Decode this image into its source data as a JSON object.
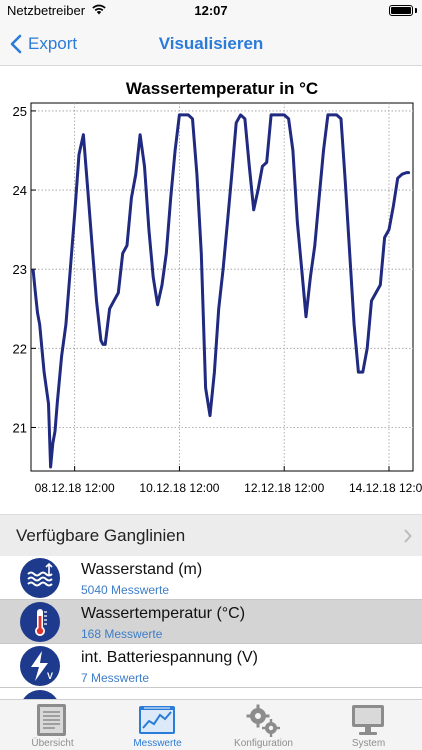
{
  "status_bar": {
    "carrier": "Netzbetreiber",
    "time": "12:07",
    "battery_level": 1.0
  },
  "nav": {
    "back_label": "Export",
    "title": "Visualisieren"
  },
  "chart_data": {
    "type": "line",
    "title": "Wassertemperatur in °C",
    "xlabel": "",
    "ylabel": "",
    "ylim": [
      20.45,
      25.1
    ],
    "xlim": [
      "2018-12-07T16:00",
      "2018-12-14T23:00"
    ],
    "grid": true,
    "yticks": [
      "21",
      "22",
      "23",
      "24",
      "25"
    ],
    "xticks": [
      "08.12.18 12:00",
      "10.12.18 12:00",
      "12.12.18 12:00",
      "14.12.18 12:00"
    ],
    "line_color": "#1f2a80",
    "series": [
      {
        "x": [
          "2018-12-07T17:00",
          "2018-12-07T18:00",
          "2018-12-07T19:00",
          "2018-12-07T20:00",
          "2018-12-07T22:00",
          "2018-12-08T00:00",
          "2018-12-08T01:00",
          "2018-12-08T02:00",
          "2018-12-08T03:00",
          "2018-12-08T04:00",
          "2018-12-08T05:00",
          "2018-12-08T06:00",
          "2018-12-08T08:00",
          "2018-12-08T10:00",
          "2018-12-08T12:00",
          "2018-12-08T14:00",
          "2018-12-08T16:00",
          "2018-12-08T18:00",
          "2018-12-08T20:00",
          "2018-12-08T22:00",
          "2018-12-09T00:00",
          "2018-12-09T01:00",
          "2018-12-09T02:00",
          "2018-12-09T04:00",
          "2018-12-09T06:00",
          "2018-12-09T08:00",
          "2018-12-09T10:00",
          "2018-12-09T12:00",
          "2018-12-09T14:00",
          "2018-12-09T16:00",
          "2018-12-09T18:00",
          "2018-12-09T20:00",
          "2018-12-09T22:00",
          "2018-12-10T00:00",
          "2018-12-10T02:00",
          "2018-12-10T04:00",
          "2018-12-10T06:00",
          "2018-12-10T08:00",
          "2018-12-10T10:00",
          "2018-12-10T12:00",
          "2018-12-10T14:00",
          "2018-12-10T16:00",
          "2018-12-10T18:00",
          "2018-12-10T20:00",
          "2018-12-10T22:00",
          "2018-12-11T00:00",
          "2018-12-11T02:00",
          "2018-12-11T04:00",
          "2018-12-11T06:00",
          "2018-12-11T08:00",
          "2018-12-11T10:00",
          "2018-12-11T12:00",
          "2018-12-11T14:00",
          "2018-12-11T16:00",
          "2018-12-11T18:00",
          "2018-12-11T20:00",
          "2018-12-11T22:00",
          "2018-12-12T00:00",
          "2018-12-12T02:00",
          "2018-12-12T04:00",
          "2018-12-12T06:00",
          "2018-12-12T08:00",
          "2018-12-12T10:00",
          "2018-12-12T12:00",
          "2018-12-12T14:00",
          "2018-12-12T16:00",
          "2018-12-12T18:00",
          "2018-12-12T20:00",
          "2018-12-12T22:00",
          "2018-12-13T00:00",
          "2018-12-13T02:00",
          "2018-12-13T04:00",
          "2018-12-13T06:00",
          "2018-12-13T08:00",
          "2018-12-13T10:00",
          "2018-12-13T12:00",
          "2018-12-13T14:00",
          "2018-12-13T16:00",
          "2018-12-13T18:00",
          "2018-12-13T20:00",
          "2018-12-13T22:00",
          "2018-12-14T00:00",
          "2018-12-14T02:00",
          "2018-12-14T04:00",
          "2018-12-14T06:00",
          "2018-12-14T08:00",
          "2018-12-14T10:00",
          "2018-12-14T12:00",
          "2018-12-14T14:00",
          "2018-12-14T16:00",
          "2018-12-14T18:00",
          "2018-12-14T20:00",
          "2018-12-14T21:00"
        ],
        "values": [
          22.98,
          22.7,
          22.45,
          22.3,
          21.7,
          21.3,
          20.5,
          20.8,
          20.95,
          21.3,
          21.6,
          21.9,
          22.3,
          23.0,
          23.7,
          24.45,
          24.7,
          24.0,
          23.3,
          22.6,
          22.1,
          22.05,
          22.05,
          22.5,
          22.6,
          22.7,
          23.2,
          23.3,
          23.9,
          24.2,
          24.7,
          24.3,
          23.5,
          22.9,
          22.55,
          22.8,
          23.2,
          23.9,
          24.5,
          24.95,
          24.95,
          24.95,
          24.9,
          24.2,
          23.2,
          21.5,
          21.15,
          21.7,
          22.5,
          23.0,
          23.6,
          24.2,
          24.85,
          24.95,
          24.9,
          24.3,
          23.75,
          24.0,
          24.3,
          24.35,
          24.95,
          24.95,
          24.95,
          24.95,
          24.9,
          24.5,
          23.6,
          23.0,
          22.4,
          22.9,
          23.3,
          23.9,
          24.5,
          24.95,
          24.95,
          24.95,
          24.9,
          24.1,
          23.2,
          22.3,
          21.7,
          21.7,
          22.0,
          22.6,
          22.7,
          22.8,
          23.4,
          23.5,
          23.8,
          24.15,
          24.2,
          24.22,
          24.22
        ]
      }
    ]
  },
  "section": {
    "title": "Verfügbare Ganglinien"
  },
  "list": {
    "items": [
      {
        "label": "Wasserstand (m)",
        "sub": "5040 Messwerte",
        "icon": "water-level-icon"
      },
      {
        "label": "Wassertemperatur (°C)",
        "sub": "168 Messwerte",
        "icon": "thermometer-icon",
        "selected": true
      },
      {
        "label": "int. Batteriespannung (V)",
        "sub": "7 Messwerte",
        "icon": "battery-voltage-icon"
      }
    ]
  },
  "tabs": [
    {
      "label": "Übersicht",
      "icon": "overview-document-icon"
    },
    {
      "label": "Messwerte",
      "icon": "measurements-chart-icon",
      "active": true
    },
    {
      "label": "Konfiguration",
      "icon": "gears-icon"
    },
    {
      "label": "System",
      "icon": "monitor-icon"
    }
  ],
  "colors": {
    "accent": "#2b7bd8",
    "icon_bg": "#1d3a8c",
    "selected_row": "#d4d4d4",
    "sub_text": "#3d7dc8"
  }
}
